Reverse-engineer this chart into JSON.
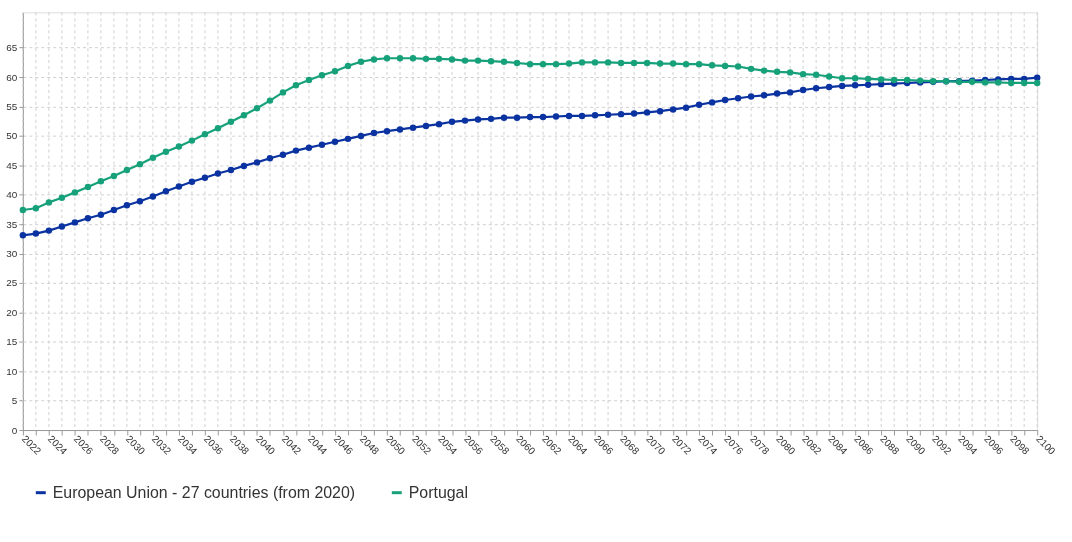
{
  "chart_data": {
    "type": "line",
    "x": [
      2022,
      2023,
      2024,
      2025,
      2026,
      2027,
      2028,
      2029,
      2030,
      2031,
      2032,
      2033,
      2034,
      2035,
      2036,
      2037,
      2038,
      2039,
      2040,
      2041,
      2042,
      2043,
      2044,
      2045,
      2046,
      2047,
      2048,
      2049,
      2050,
      2051,
      2052,
      2053,
      2054,
      2055,
      2056,
      2057,
      2058,
      2059,
      2060,
      2061,
      2062,
      2063,
      2064,
      2065,
      2066,
      2067,
      2068,
      2069,
      2070,
      2071,
      2072,
      2073,
      2074,
      2075,
      2076,
      2077,
      2078,
      2079,
      2080,
      2081,
      2082,
      2083,
      2084,
      2085,
      2086,
      2087,
      2088,
      2089,
      2090,
      2091,
      2092,
      2093,
      2094,
      2095,
      2096,
      2097,
      2098,
      2099,
      2100
    ],
    "series": [
      {
        "name": "European Union - 27 countries (from 2020)",
        "color": "#0a32a0",
        "values": [
          33.1,
          33.4,
          33.9,
          34.6,
          35.3,
          36.0,
          36.6,
          37.4,
          38.2,
          38.9,
          39.7,
          40.6,
          41.4,
          42.2,
          42.9,
          43.6,
          44.2,
          44.9,
          45.5,
          46.2,
          46.8,
          47.5,
          48.0,
          48.5,
          49.0,
          49.5,
          50.0,
          50.5,
          50.8,
          51.1,
          51.4,
          51.7,
          52.0,
          52.4,
          52.6,
          52.8,
          52.9,
          53.1,
          53.1,
          53.2,
          53.2,
          53.3,
          53.4,
          53.4,
          53.5,
          53.6,
          53.7,
          53.8,
          54.0,
          54.2,
          54.5,
          54.8,
          55.3,
          55.7,
          56.1,
          56.4,
          56.7,
          56.9,
          57.2,
          57.4,
          57.8,
          58.1,
          58.3,
          58.5,
          58.6,
          58.7,
          58.8,
          58.9,
          59.0,
          59.1,
          59.2,
          59.3,
          59.3,
          59.4,
          59.5,
          59.6,
          59.7,
          59.7,
          59.9
        ]
      },
      {
        "name": "Portugal",
        "color": "#17a17a",
        "values": [
          37.4,
          37.7,
          38.7,
          39.5,
          40.4,
          41.3,
          42.3,
          43.2,
          44.2,
          45.2,
          46.3,
          47.3,
          48.2,
          49.2,
          50.3,
          51.3,
          52.4,
          53.5,
          54.7,
          56.0,
          57.4,
          58.6,
          59.5,
          60.3,
          61.0,
          61.9,
          62.6,
          63.0,
          63.2,
          63.2,
          63.2,
          63.1,
          63.1,
          63.0,
          62.8,
          62.8,
          62.7,
          62.6,
          62.4,
          62.2,
          62.2,
          62.2,
          62.3,
          62.5,
          62.5,
          62.5,
          62.4,
          62.4,
          62.4,
          62.3,
          62.3,
          62.2,
          62.2,
          62.0,
          61.9,
          61.8,
          61.4,
          61.1,
          60.9,
          60.8,
          60.5,
          60.4,
          60.1,
          59.8,
          59.8,
          59.7,
          59.6,
          59.5,
          59.5,
          59.4,
          59.3,
          59.3,
          59.2,
          59.2,
          59.1,
          59.1,
          59.0,
          59.0,
          59.0
        ]
      }
    ],
    "xlim": [
      2022,
      2100
    ],
    "xticks": [
      2022,
      {
        "value": 2023,
        "label": null
      },
      2024,
      {
        "value": 2025,
        "label": null
      },
      2026,
      {
        "value": 2027,
        "label": null
      },
      2028,
      {
        "value": 2029,
        "label": null
      },
      2030,
      {
        "value": 2031,
        "label": null
      },
      2032,
      {
        "value": 2033,
        "label": null
      },
      2034,
      {
        "value": 2035,
        "label": null
      },
      2036,
      {
        "value": 2037,
        "label": null
      },
      2038,
      {
        "value": 2039,
        "label": null
      },
      2040,
      {
        "value": 2041,
        "label": null
      },
      2042,
      {
        "value": 2043,
        "label": null
      },
      2044,
      {
        "value": 2045,
        "label": null
      },
      2046,
      {
        "value": 2047,
        "label": null
      },
      2048,
      {
        "value": 2049,
        "label": null
      },
      2050,
      {
        "value": 2051,
        "label": null
      },
      2052,
      {
        "value": 2053,
        "label": null
      },
      2054,
      {
        "value": 2055,
        "label": null
      },
      2056,
      {
        "value": 2057,
        "label": null
      },
      2058,
      {
        "value": 2059,
        "label": null
      },
      2060,
      {
        "value": 2061,
        "label": null
      },
      2062,
      {
        "value": 2063,
        "label": null
      },
      2064,
      {
        "value": 2065,
        "label": null
      },
      2066,
      {
        "value": 2067,
        "label": null
      },
      2068,
      {
        "value": 2069,
        "label": null
      },
      2070,
      {
        "value": 2071,
        "label": null
      },
      2072,
      {
        "value": 2073,
        "label": null
      },
      2074,
      {
        "value": 2075,
        "label": null
      },
      2076,
      {
        "value": 2077,
        "label": null
      },
      2078,
      {
        "value": 2079,
        "label": null
      },
      2080,
      {
        "value": 2081,
        "label": null
      },
      2082,
      {
        "value": 2083,
        "label": null
      },
      2084,
      {
        "value": 2085,
        "label": null
      },
      2086,
      {
        "value": 2087,
        "label": null
      },
      2088,
      {
        "value": 2089,
        "label": null
      },
      2090,
      {
        "value": 2091,
        "label": null
      },
      2092,
      {
        "value": 2093,
        "label": null
      },
      2094,
      {
        "value": 2095,
        "label": null
      },
      2096,
      {
        "value": 2097,
        "label": null
      },
      2098,
      {
        "value": 2099,
        "label": null
      },
      2100
    ],
    "ylim": [
      0,
      71
    ],
    "yticks": [
      0,
      5,
      10,
      15,
      20,
      25,
      30,
      35,
      40,
      45,
      50,
      55,
      60,
      65
    ],
    "grid": true,
    "legend": "bottom",
    "marker": "circle",
    "line_style": "solid"
  }
}
